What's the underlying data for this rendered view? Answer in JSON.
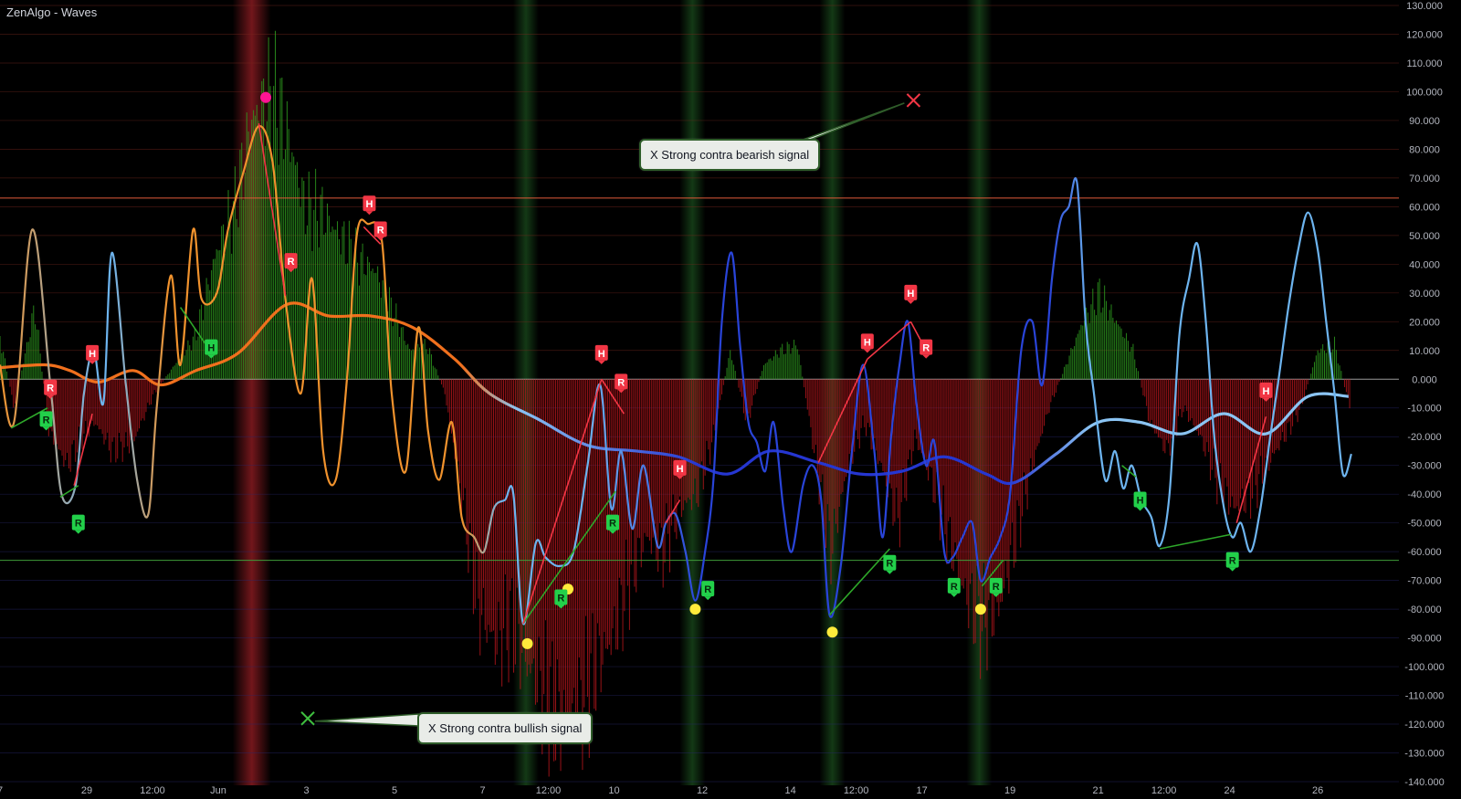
{
  "indicator_title": "ZenAlgo - Waves",
  "annotations": {
    "bearish": "X Strong contra bearish signal",
    "bullish": "X Strong contra bullish signal"
  },
  "colors": {
    "background": "#000000",
    "hist_pos": "#2e9c1f",
    "hist_neg": "#b3161c",
    "fast_warm": "#f0922d",
    "fast_cool": "#6db4ef",
    "fast_deep": "#2944d9",
    "slow_warm": "#f0701d",
    "slow_cool": "#8bc4f3",
    "slow_deep": "#2536d1",
    "upper_level": "#e05a3a",
    "lower_level": "#3f9c3a",
    "h_marker": "#f23645",
    "r_marker_green": "#22d04a",
    "yellow_dot": "#ffeb3b",
    "magenta_dot": "#ff1493"
  },
  "chart_data": {
    "type": "line",
    "y_axis": {
      "min": -140,
      "max": 130,
      "tick_step": 10,
      "tick_labels": [
        "130.000",
        "120.000",
        "110.000",
        "100.000",
        "90.000",
        "80.000",
        "70.000",
        "60.000",
        "50.000",
        "40.000",
        "30.000",
        "20.000",
        "10.000",
        "0.000",
        "-10.000",
        "-20.000",
        "-30.000",
        "-40.000",
        "-50.000",
        "-60.000",
        "-70.000",
        "-80.000",
        "-90.000",
        "-100.000",
        "-110.000",
        "-120.000",
        "-130.000",
        "-140.000"
      ]
    },
    "x_axis": {
      "range": [
        0,
        100
      ],
      "ticks": [
        {
          "x": 0,
          "label": "7"
        },
        {
          "x": 6.2,
          "label": "29"
        },
        {
          "x": 10.9,
          "label": "12:00"
        },
        {
          "x": 15.6,
          "label": "Jun"
        },
        {
          "x": 21.9,
          "label": "3"
        },
        {
          "x": 28.2,
          "label": "5"
        },
        {
          "x": 34.5,
          "label": "7"
        },
        {
          "x": 39.2,
          "label": "12:00"
        },
        {
          "x": 43.9,
          "label": "10"
        },
        {
          "x": 50.2,
          "label": "12"
        },
        {
          "x": 56.5,
          "label": "14"
        },
        {
          "x": 61.2,
          "label": "12:00"
        },
        {
          "x": 65.9,
          "label": "17"
        },
        {
          "x": 72.2,
          "label": "19"
        },
        {
          "x": 78.5,
          "label": "21"
        },
        {
          "x": 83.2,
          "label": "12:00"
        },
        {
          "x": 87.9,
          "label": "24"
        },
        {
          "x": 94.2,
          "label": "26"
        }
      ]
    },
    "levels": {
      "upper": 63,
      "lower": -63
    },
    "highlight_bands": [
      {
        "x": 18.0,
        "color": "red"
      },
      {
        "x": 37.6,
        "color": "green"
      },
      {
        "x": 49.5,
        "color": "green"
      },
      {
        "x": 59.5,
        "color": "green"
      },
      {
        "x": 70.0,
        "color": "green"
      }
    ],
    "fast_wave": [
      [
        0,
        5
      ],
      [
        1,
        -15
      ],
      [
        2.3,
        52
      ],
      [
        3.6,
        -2
      ],
      [
        4.4,
        -40
      ],
      [
        5.4,
        -37
      ],
      [
        6.0,
        -5
      ],
      [
        6.7,
        10
      ],
      [
        7.4,
        -8
      ],
      [
        8.0,
        44
      ],
      [
        9.0,
        -2
      ],
      [
        9.8,
        -35
      ],
      [
        10.6,
        -47
      ],
      [
        11.2,
        -10
      ],
      [
        12.2,
        36
      ],
      [
        12.9,
        5
      ],
      [
        13.8,
        52
      ],
      [
        14.4,
        28
      ],
      [
        15.5,
        30
      ],
      [
        16.3,
        52
      ],
      [
        17.4,
        72
      ],
      [
        18.5,
        88
      ],
      [
        19.5,
        75
      ],
      [
        20.4,
        28
      ],
      [
        21.5,
        -5
      ],
      [
        22.3,
        35
      ],
      [
        23.1,
        -25
      ],
      [
        24.0,
        -35
      ],
      [
        24.8,
        0
      ],
      [
        25.5,
        50
      ],
      [
        26.3,
        54
      ],
      [
        27.3,
        48
      ],
      [
        28.0,
        -5
      ],
      [
        29.0,
        -32
      ],
      [
        29.9,
        18
      ],
      [
        30.6,
        -18
      ],
      [
        31.4,
        -35
      ],
      [
        32.3,
        -15
      ],
      [
        33.0,
        -48
      ],
      [
        33.9,
        -55
      ],
      [
        34.6,
        -60
      ],
      [
        35.3,
        -45
      ],
      [
        36.1,
        -42
      ],
      [
        36.7,
        -40
      ],
      [
        37.4,
        -85
      ],
      [
        38.3,
        -57
      ],
      [
        39.0,
        -62
      ],
      [
        40.0,
        -65
      ],
      [
        41.0,
        -60
      ],
      [
        42.0,
        -30
      ],
      [
        42.9,
        -2
      ],
      [
        43.7,
        -45
      ],
      [
        44.4,
        -25
      ],
      [
        45.2,
        -52
      ],
      [
        46.0,
        -30
      ],
      [
        47.0,
        -58
      ],
      [
        47.6,
        -50
      ],
      [
        48.3,
        -47
      ],
      [
        49.0,
        -60
      ],
      [
        49.7,
        -77
      ],
      [
        50.4,
        -60
      ],
      [
        51.0,
        -35
      ],
      [
        51.6,
        20
      ],
      [
        52.3,
        44
      ],
      [
        52.9,
        12
      ],
      [
        53.5,
        -15
      ],
      [
        54.1,
        -22
      ],
      [
        54.7,
        -32
      ],
      [
        55.3,
        -15
      ],
      [
        56.0,
        -45
      ],
      [
        56.6,
        -60
      ],
      [
        57.4,
        -37
      ],
      [
        58.1,
        -30
      ],
      [
        58.7,
        -42
      ],
      [
        59.3,
        -82
      ],
      [
        60.1,
        -65
      ],
      [
        60.9,
        -25
      ],
      [
        61.7,
        5
      ],
      [
        62.5,
        -25
      ],
      [
        63.1,
        -55
      ],
      [
        63.7,
        -20
      ],
      [
        64.3,
        5
      ],
      [
        64.9,
        20
      ],
      [
        65.5,
        -8
      ],
      [
        66.2,
        -30
      ],
      [
        66.8,
        -22
      ],
      [
        67.5,
        -60
      ],
      [
        68.1,
        -62
      ],
      [
        68.8,
        -55
      ],
      [
        69.5,
        -50
      ],
      [
        70.1,
        -70
      ],
      [
        70.8,
        -62
      ],
      [
        71.5,
        -55
      ],
      [
        72.2,
        -40
      ],
      [
        73.0,
        10
      ],
      [
        73.8,
        20
      ],
      [
        74.5,
        -2
      ],
      [
        75.2,
        35
      ],
      [
        75.8,
        55
      ],
      [
        76.4,
        60
      ],
      [
        77.0,
        68
      ],
      [
        77.6,
        20
      ],
      [
        78.2,
        -5
      ],
      [
        79.0,
        -35
      ],
      [
        79.7,
        -25
      ],
      [
        80.3,
        -38
      ],
      [
        80.9,
        -30
      ],
      [
        81.6,
        -42
      ],
      [
        82.3,
        -48
      ],
      [
        82.9,
        -58
      ],
      [
        83.6,
        -40
      ],
      [
        84.3,
        15
      ],
      [
        85.0,
        35
      ],
      [
        85.6,
        47
      ],
      [
        86.2,
        20
      ],
      [
        86.8,
        -20
      ],
      [
        87.5,
        -45
      ],
      [
        88.1,
        -55
      ],
      [
        88.7,
        -50
      ],
      [
        89.4,
        -60
      ],
      [
        90.1,
        -45
      ],
      [
        90.8,
        -20
      ],
      [
        91.4,
        0
      ],
      [
        92.1,
        25
      ],
      [
        92.8,
        45
      ],
      [
        93.5,
        58
      ],
      [
        94.2,
        45
      ],
      [
        94.8,
        20
      ],
      [
        95.4,
        -5
      ],
      [
        96.0,
        -33
      ],
      [
        96.6,
        -26
      ]
    ],
    "slow_wave": [
      [
        0,
        4
      ],
      [
        3.2,
        5
      ],
      [
        5.0,
        3
      ],
      [
        7.0,
        -1
      ],
      [
        9.5,
        3
      ],
      [
        11.5,
        -2
      ],
      [
        14.0,
        3
      ],
      [
        17.0,
        9
      ],
      [
        20.5,
        26
      ],
      [
        23.5,
        22
      ],
      [
        26.5,
        22
      ],
      [
        29.5,
        18
      ],
      [
        32.5,
        7
      ],
      [
        35.0,
        -5
      ],
      [
        38.5,
        -14
      ],
      [
        42.0,
        -23
      ],
      [
        45.5,
        -25
      ],
      [
        48.5,
        -27
      ],
      [
        52.0,
        -33
      ],
      [
        55.0,
        -25
      ],
      [
        58.5,
        -29
      ],
      [
        61.5,
        -33
      ],
      [
        64.5,
        -32
      ],
      [
        67.5,
        -27
      ],
      [
        70.5,
        -33
      ],
      [
        72.5,
        -36
      ],
      [
        75.5,
        -26
      ],
      [
        78.5,
        -15
      ],
      [
        81.5,
        -15
      ],
      [
        84.5,
        -19
      ],
      [
        87.5,
        -12
      ],
      [
        90.5,
        -19
      ],
      [
        93.5,
        -6
      ],
      [
        96.4,
        -6
      ]
    ],
    "histogram": [
      [
        0,
        15
      ],
      [
        1,
        -10
      ],
      [
        2.5,
        25
      ],
      [
        3.5,
        -18
      ],
      [
        4.8,
        -30
      ],
      [
        5.8,
        -20
      ],
      [
        6.8,
        -15
      ],
      [
        8.0,
        -25
      ],
      [
        9.5,
        -22
      ],
      [
        11.0,
        -5
      ],
      [
        12.5,
        5
      ],
      [
        14.0,
        15
      ],
      [
        15.5,
        45
      ],
      [
        16.8,
        60
      ],
      [
        18.0,
        90
      ],
      [
        19.5,
        100
      ],
      [
        20.6,
        85
      ],
      [
        21.8,
        60
      ],
      [
        23.0,
        58
      ],
      [
        24.3,
        50
      ],
      [
        25.5,
        42
      ],
      [
        26.8,
        38
      ],
      [
        28.0,
        25
      ],
      [
        29.3,
        10
      ],
      [
        30.5,
        12
      ],
      [
        31.8,
        -5
      ],
      [
        33.0,
        -40
      ],
      [
        34.2,
        -80
      ],
      [
        35.4,
        -92
      ],
      [
        36.6,
        -85
      ],
      [
        37.8,
        -100
      ],
      [
        39.0,
        -110
      ],
      [
        40.2,
        -120
      ],
      [
        41.4,
        -115
      ],
      [
        42.6,
        -100
      ],
      [
        43.8,
        -90
      ],
      [
        45.0,
        -70
      ],
      [
        46.2,
        -55
      ],
      [
        47.4,
        -60
      ],
      [
        48.6,
        -45
      ],
      [
        49.8,
        -40
      ],
      [
        51.0,
        -20
      ],
      [
        52.2,
        10
      ],
      [
        53.4,
        -15
      ],
      [
        54.6,
        5
      ],
      [
        55.8,
        10
      ],
      [
        57.0,
        12
      ],
      [
        58.2,
        -25
      ],
      [
        59.4,
        -60
      ],
      [
        60.6,
        -30
      ],
      [
        61.8,
        -15
      ],
      [
        63.0,
        -30
      ],
      [
        64.2,
        -50
      ],
      [
        65.4,
        -20
      ],
      [
        66.6,
        -35
      ],
      [
        67.8,
        -55
      ],
      [
        69.0,
        -75
      ],
      [
        70.2,
        -85
      ],
      [
        71.4,
        -80
      ],
      [
        72.6,
        -55
      ],
      [
        73.8,
        -30
      ],
      [
        75.0,
        -10
      ],
      [
        76.2,
        5
      ],
      [
        77.4,
        20
      ],
      [
        78.6,
        30
      ],
      [
        79.8,
        20
      ],
      [
        81.0,
        10
      ],
      [
        82.2,
        -15
      ],
      [
        83.4,
        -25
      ],
      [
        84.6,
        -10
      ],
      [
        85.8,
        -20
      ],
      [
        87.0,
        -35
      ],
      [
        88.2,
        -45
      ],
      [
        89.4,
        -40
      ],
      [
        90.6,
        -30
      ],
      [
        91.8,
        -20
      ],
      [
        93.0,
        -10
      ],
      [
        94.2,
        10
      ],
      [
        95.4,
        12
      ],
      [
        96.6,
        -12
      ]
    ],
    "markers": [
      {
        "type": "H",
        "x": 6.6,
        "y": 9,
        "color": "red"
      },
      {
        "type": "R",
        "x": 3.6,
        "y": -3,
        "color": "red"
      },
      {
        "type": "R",
        "x": 3.3,
        "y": -14,
        "color": "green"
      },
      {
        "type": "R",
        "x": 5.6,
        "y": -50,
        "color": "green"
      },
      {
        "type": "H",
        "x": 15.1,
        "y": 11,
        "color": "green"
      },
      {
        "type": "H",
        "x": 26.4,
        "y": 61,
        "color": "red"
      },
      {
        "type": "R",
        "x": 27.2,
        "y": 52,
        "color": "red"
      },
      {
        "type": "R",
        "x": 20.8,
        "y": 41,
        "color": "red"
      },
      {
        "type": "H",
        "x": 43.0,
        "y": 9,
        "color": "red"
      },
      {
        "type": "R",
        "x": 44.4,
        "y": -1,
        "color": "red"
      },
      {
        "type": "R",
        "x": 43.8,
        "y": -50,
        "color": "green"
      },
      {
        "type": "R",
        "x": 40.1,
        "y": -76,
        "color": "green"
      },
      {
        "type": "H",
        "x": 48.6,
        "y": -31,
        "color": "red"
      },
      {
        "type": "R",
        "x": 50.6,
        "y": -73,
        "color": "green"
      },
      {
        "type": "H",
        "x": 62.0,
        "y": 13,
        "color": "red"
      },
      {
        "type": "H",
        "x": 65.1,
        "y": 30,
        "color": "red"
      },
      {
        "type": "R",
        "x": 66.2,
        "y": 11,
        "color": "red"
      },
      {
        "type": "R",
        "x": 63.6,
        "y": -64,
        "color": "green"
      },
      {
        "type": "R",
        "x": 68.2,
        "y": -72,
        "color": "green"
      },
      {
        "type": "R",
        "x": 71.2,
        "y": -72,
        "color": "green"
      },
      {
        "type": "H",
        "x": 81.5,
        "y": -42,
        "color": "green"
      },
      {
        "type": "R",
        "x": 88.1,
        "y": -63,
        "color": "green"
      },
      {
        "type": "H",
        "x": 90.5,
        "y": -4,
        "color": "red"
      }
    ],
    "yellow_dots": [
      [
        37.7,
        -92
      ],
      [
        40.6,
        -73
      ],
      [
        49.7,
        -80
      ],
      [
        59.5,
        -88
      ],
      [
        70.1,
        -80
      ]
    ],
    "magenta_dots": [
      [
        19.0,
        98
      ]
    ],
    "signal_x_marks": [
      {
        "kind": "bearish",
        "x": 65.3,
        "y": 97,
        "color": "#f23645"
      },
      {
        "kind": "bullish",
        "x": 22.0,
        "y": -118,
        "color": "#3fbf3f"
      }
    ],
    "divergence_lines": [
      {
        "p": [
          [
            0.8,
            -17
          ],
          [
            3.4,
            -10
          ]
        ],
        "color": "#2ea82a"
      },
      {
        "p": [
          [
            4.3,
            -41
          ],
          [
            5.6,
            -37
          ]
        ],
        "color": "#2ea82a"
      },
      {
        "p": [
          [
            12.9,
            25
          ],
          [
            15.0,
            10
          ]
        ],
        "color": "#2ea82a"
      },
      {
        "p": [
          [
            37.4,
            -85
          ],
          [
            44.0,
            -39
          ]
        ],
        "color": "#2ea82a"
      },
      {
        "p": [
          [
            59.3,
            -82
          ],
          [
            63.6,
            -59
          ]
        ],
        "color": "#2ea82a"
      },
      {
        "p": [
          [
            70.2,
            -72
          ],
          [
            71.7,
            -63
          ]
        ],
        "color": "#2ea82a"
      },
      {
        "p": [
          [
            80.2,
            -30
          ],
          [
            81.2,
            -34
          ]
        ],
        "color": "#2ea82a"
      },
      {
        "p": [
          [
            82.9,
            -59
          ],
          [
            88.0,
            -54
          ]
        ],
        "color": "#2ea82a"
      },
      {
        "p": [
          [
            5.3,
            -37
          ],
          [
            6.6,
            -12
          ]
        ],
        "color": "#f23645"
      },
      {
        "p": [
          [
            18.5,
            89
          ],
          [
            20.4,
            29
          ]
        ],
        "color": "#f23645"
      },
      {
        "p": [
          [
            26.0,
            53
          ],
          [
            27.2,
            47
          ]
        ],
        "color": "#f23645"
      },
      {
        "p": [
          [
            37.4,
            -85
          ],
          [
            43.0,
            0
          ]
        ],
        "color": "#f23645"
      },
      {
        "p": [
          [
            43.0,
            0
          ],
          [
            44.6,
            -12
          ]
        ],
        "color": "#f23645"
      },
      {
        "p": [
          [
            47.6,
            -50
          ],
          [
            48.6,
            -42
          ]
        ],
        "color": "#f23645"
      },
      {
        "p": [
          [
            58.5,
            -29
          ],
          [
            62.0,
            7
          ]
        ],
        "color": "#f23645"
      },
      {
        "p": [
          [
            62.0,
            7
          ],
          [
            65.1,
            20
          ]
        ],
        "color": "#f23645"
      },
      {
        "p": [
          [
            65.1,
            20
          ],
          [
            66.2,
            10
          ]
        ],
        "color": "#f23645"
      },
      {
        "p": [
          [
            88.4,
            -50
          ],
          [
            90.5,
            -13
          ]
        ],
        "color": "#f23645"
      }
    ]
  }
}
